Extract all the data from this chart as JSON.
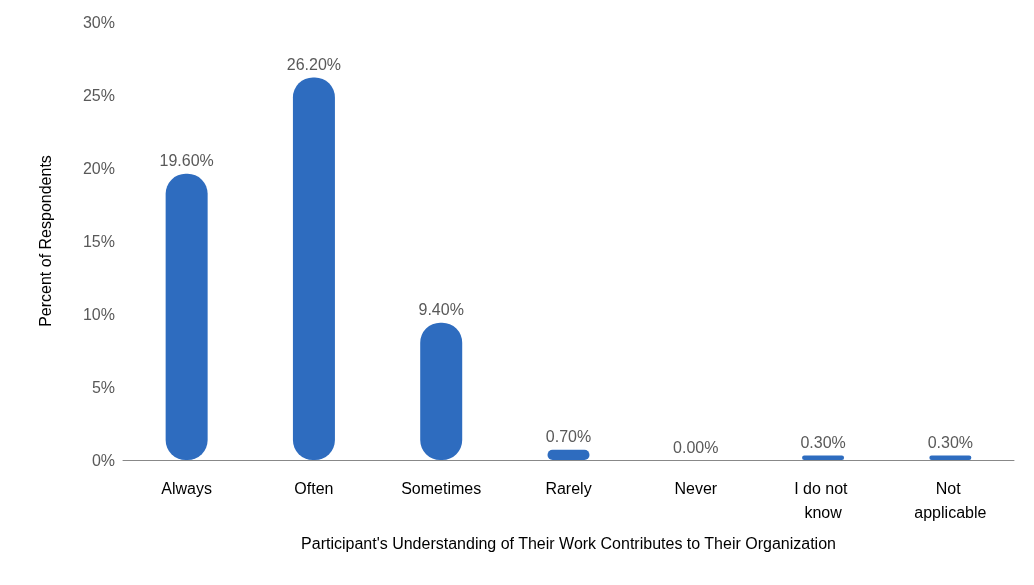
{
  "chart_data": {
    "type": "bar",
    "xlabel": "Participant's Understanding of Their Work Contributes to Their Organization",
    "ylabel": "Percent of Respondents",
    "categories": [
      "Always",
      "Often",
      "Sometimes",
      "Rarely",
      "Never",
      "I do not know",
      "Not applicable"
    ],
    "values": [
      19.6,
      26.2,
      9.4,
      0.7,
      0,
      0.3,
      0.3
    ],
    "value_labels": [
      "19.60%",
      "26.20%",
      "9.40%",
      "0.70%",
      "0.00%",
      "0.30%",
      "0.30%"
    ],
    "color": "#2e6cbf",
    "ylim": [
      0,
      30
    ],
    "yticks": [
      {
        "value": 0,
        "label": "0%"
      },
      {
        "value": 5,
        "label": "5%"
      },
      {
        "value": 10,
        "label": "10%"
      },
      {
        "value": 15,
        "label": "15%"
      },
      {
        "value": 20,
        "label": "20%"
      },
      {
        "value": 25,
        "label": "25%"
      },
      {
        "value": 30,
        "label": "30%"
      }
    ],
    "grid": false
  }
}
